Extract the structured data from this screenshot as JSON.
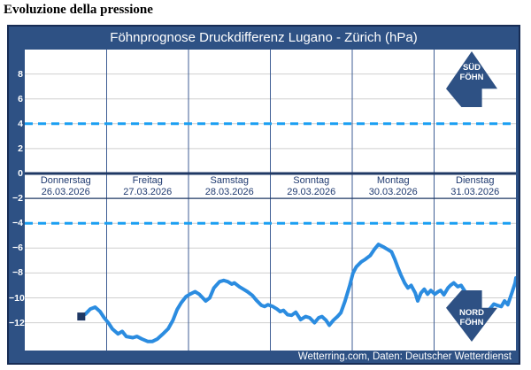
{
  "page": {
    "title": "Evoluzione della pressione"
  },
  "chart": {
    "title": "Föhnprognose Druckdifferenz Lugano - Zürich (hPa)",
    "footer": "Wetterring.com, Daten: Deutscher Wetterdienst",
    "colors": {
      "panel_blue": "#2e5184",
      "border_navy": "#172c54",
      "axis_navy": "#1f3864",
      "divider": "#3f5e94",
      "gridline": "#cfcfcf",
      "threshold_dashed": "#1b9ff2",
      "data_line": "#2b8ce0",
      "marker": "#1f3864",
      "day_label_text": "#1f3a70"
    },
    "y_axis": {
      "tick_labels": [
        "8",
        "6",
        "4",
        "2",
        "0",
        "−2",
        "−4",
        "−6",
        "−8",
        "−10",
        "−12"
      ],
      "tick_values": [
        8,
        6,
        4,
        2,
        0,
        -2,
        -4,
        -6,
        -8,
        -10,
        -12
      ],
      "grid_values": [
        8,
        6,
        4,
        2,
        -4,
        -6,
        -8,
        -10,
        -12
      ]
    },
    "sued_arrow": {
      "name": "sued-foehn",
      "line1": "SÜD",
      "line2": "FÖHN"
    },
    "nord_arrow": {
      "name": "nord-foehn",
      "line1": "NORD",
      "line2": "FÖHN"
    }
  },
  "chart_data": {
    "type": "line",
    "title": "Föhnprognose Druckdifferenz Lugano - Zürich (hPa)",
    "ylabel": "hPa",
    "ylim": [
      -14.3,
      9.95
    ],
    "xlim_days": [
      0,
      6
    ],
    "grid": true,
    "categories": [
      {
        "name": "Donnerstag",
        "date": "26.03.2026"
      },
      {
        "name": "Freitag",
        "date": "27.03.2026"
      },
      {
        "name": "Samstag",
        "date": "28.03.2026"
      },
      {
        "name": "Sonntag",
        "date": "29.03.2026"
      },
      {
        "name": "Montag",
        "date": "30.03.2026"
      },
      {
        "name": "Dienstag",
        "date": "31.03.2026"
      }
    ],
    "thresholds": [
      4,
      -4
    ],
    "zero_line": 0,
    "label_band_bottom": -2,
    "marker_start": {
      "day": 0.69,
      "value": -11.5
    },
    "series_name": "Druckdifferenz Lugano - Zürich (hPa)",
    "points": [
      [
        0.69,
        -11.5
      ],
      [
        0.74,
        -11.3
      ],
      [
        0.8,
        -10.9
      ],
      [
        0.86,
        -10.75
      ],
      [
        0.92,
        -11.1
      ],
      [
        0.97,
        -11.6
      ],
      [
        1.02,
        -12.0
      ],
      [
        1.07,
        -12.5
      ],
      [
        1.14,
        -12.9
      ],
      [
        1.19,
        -12.7
      ],
      [
        1.24,
        -13.1
      ],
      [
        1.32,
        -13.2
      ],
      [
        1.37,
        -13.1
      ],
      [
        1.43,
        -13.3
      ],
      [
        1.5,
        -13.5
      ],
      [
        1.56,
        -13.5
      ],
      [
        1.62,
        -13.3
      ],
      [
        1.68,
        -12.95
      ],
      [
        1.75,
        -12.5
      ],
      [
        1.81,
        -11.8
      ],
      [
        1.86,
        -10.95
      ],
      [
        1.91,
        -10.4
      ],
      [
        1.97,
        -9.9
      ],
      [
        2.02,
        -9.7
      ],
      [
        2.08,
        -9.5
      ],
      [
        2.13,
        -9.7
      ],
      [
        2.21,
        -10.25
      ],
      [
        2.26,
        -10.0
      ],
      [
        2.31,
        -9.2
      ],
      [
        2.38,
        -8.7
      ],
      [
        2.43,
        -8.6
      ],
      [
        2.48,
        -8.7
      ],
      [
        2.53,
        -8.9
      ],
      [
        2.56,
        -8.8
      ],
      [
        2.62,
        -9.1
      ],
      [
        2.67,
        -9.3
      ],
      [
        2.72,
        -9.5
      ],
      [
        2.78,
        -9.8
      ],
      [
        2.83,
        -10.2
      ],
      [
        2.89,
        -10.6
      ],
      [
        2.93,
        -10.7
      ],
      [
        2.97,
        -10.55
      ],
      [
        3.03,
        -10.7
      ],
      [
        3.08,
        -10.9
      ],
      [
        3.12,
        -11.1
      ],
      [
        3.16,
        -11.0
      ],
      [
        3.21,
        -11.35
      ],
      [
        3.26,
        -11.4
      ],
      [
        3.31,
        -11.15
      ],
      [
        3.37,
        -11.75
      ],
      [
        3.43,
        -11.5
      ],
      [
        3.48,
        -11.6
      ],
      [
        3.54,
        -12.0
      ],
      [
        3.59,
        -11.6
      ],
      [
        3.63,
        -11.5
      ],
      [
        3.68,
        -11.8
      ],
      [
        3.72,
        -12.2
      ],
      [
        3.77,
        -11.8
      ],
      [
        3.82,
        -11.5
      ],
      [
        3.86,
        -11.2
      ],
      [
        3.91,
        -10.3
      ],
      [
        3.97,
        -9.0
      ],
      [
        4.01,
        -8.0
      ],
      [
        4.05,
        -7.5
      ],
      [
        4.11,
        -7.1
      ],
      [
        4.16,
        -6.9
      ],
      [
        4.22,
        -6.6
      ],
      [
        4.27,
        -6.1
      ],
      [
        4.32,
        -5.7
      ],
      [
        4.38,
        -5.9
      ],
      [
        4.43,
        -6.1
      ],
      [
        4.48,
        -6.3
      ],
      [
        4.52,
        -6.9
      ],
      [
        4.56,
        -7.6
      ],
      [
        4.59,
        -8.1
      ],
      [
        4.64,
        -8.8
      ],
      [
        4.68,
        -9.2
      ],
      [
        4.72,
        -9.0
      ],
      [
        4.77,
        -9.6
      ],
      [
        4.8,
        -10.25
      ],
      [
        4.84,
        -9.6
      ],
      [
        4.88,
        -9.3
      ],
      [
        4.92,
        -9.7
      ],
      [
        4.96,
        -9.4
      ],
      [
        5.01,
        -9.7
      ],
      [
        5.05,
        -9.5
      ],
      [
        5.08,
        -9.4
      ],
      [
        5.12,
        -9.75
      ],
      [
        5.17,
        -9.2
      ],
      [
        5.2,
        -9.0
      ],
      [
        5.24,
        -8.8
      ],
      [
        5.29,
        -9.1
      ],
      [
        5.33,
        -9.0
      ],
      [
        5.37,
        -9.4
      ],
      [
        5.42,
        -9.9
      ],
      [
        5.47,
        -10.4
      ],
      [
        5.52,
        -10.8
      ],
      [
        5.58,
        -11.0
      ],
      [
        5.62,
        -11.1
      ],
      [
        5.68,
        -10.9
      ],
      [
        5.73,
        -10.5
      ],
      [
        5.77,
        -10.6
      ],
      [
        5.82,
        -10.7
      ],
      [
        5.86,
        -10.25
      ],
      [
        5.9,
        -10.55
      ],
      [
        5.95,
        -9.6
      ],
      [
        5.99,
        -8.8
      ],
      [
        6.0,
        -8.4
      ]
    ]
  }
}
